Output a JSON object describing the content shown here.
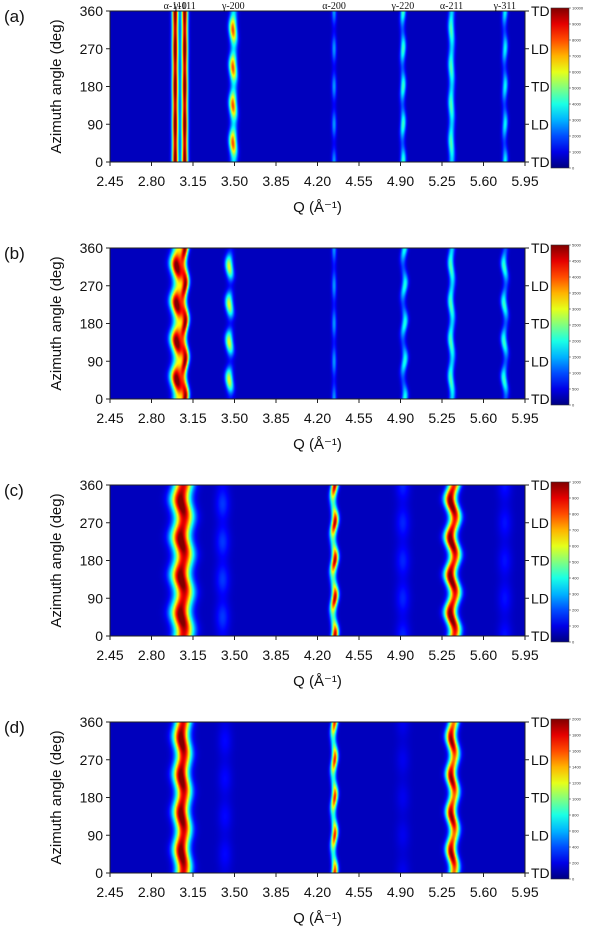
{
  "chart_data": [
    {
      "type": "heatmap",
      "panel_label": "(a)",
      "xlabel": "Q (Å⁻¹)",
      "ylabel": "Azimuth angle (deg)",
      "xlim": [
        2.45,
        5.95
      ],
      "ylim": [
        0,
        360
      ],
      "x_ticks": [
        "2.45",
        "2.80",
        "3.15",
        "3.50",
        "3.85",
        "4.20",
        "4.55",
        "4.90",
        "5.25",
        "5.60",
        "5.95"
      ],
      "y_ticks": [
        "0",
        "90",
        "180",
        "270",
        "360"
      ],
      "right_labels": [
        "TD",
        "LD",
        "TD",
        "LD",
        "TD"
      ],
      "peak_labels": [
        {
          "text": "α-110",
          "q": 3.0
        },
        {
          "text": "γ-111",
          "q": 3.08
        },
        {
          "text": "γ-200",
          "q": 3.49
        },
        {
          "text": "α-200",
          "q": 4.34
        },
        {
          "text": "γ-220",
          "q": 4.92
        },
        {
          "text": "α-211",
          "q": 5.33
        },
        {
          "text": "γ-311",
          "q": 5.78
        }
      ],
      "colorbar_ticks": [
        "0",
        "1000",
        "2000",
        "3000",
        "4000",
        "5000",
        "6000",
        "7000",
        "8000",
        "9000",
        "10000"
      ],
      "colorbar_max": 10000,
      "peaks": [
        {
          "q": 3.0,
          "w": 0.018,
          "i": 1.0,
          "mod": 0.1,
          "phase": 0,
          "wob": 0
        },
        {
          "q": 3.08,
          "w": 0.018,
          "i": 1.0,
          "mod": 0.1,
          "phase": 0,
          "wob": 0
        },
        {
          "q": 3.49,
          "w": 0.022,
          "i": 0.75,
          "mod": 0.6,
          "phase": 90,
          "wob": 0.005
        },
        {
          "q": 4.34,
          "w": 0.014,
          "i": 0.22,
          "mod": 0.7,
          "phase": 0,
          "wob": 0
        },
        {
          "q": 4.92,
          "w": 0.016,
          "i": 0.38,
          "mod": 0.6,
          "phase": 0,
          "wob": 0.004
        },
        {
          "q": 5.33,
          "w": 0.018,
          "i": 0.4,
          "mod": 0.3,
          "phase": 90,
          "wob": 0.004
        },
        {
          "q": 5.78,
          "w": 0.016,
          "i": 0.32,
          "mod": 0.6,
          "phase": 0,
          "wob": 0.004
        }
      ]
    },
    {
      "type": "heatmap",
      "panel_label": "(b)",
      "xlabel": "Q (Å⁻¹)",
      "ylabel": "Azimuth angle (deg)",
      "xlim": [
        2.45,
        5.95
      ],
      "ylim": [
        0,
        360
      ],
      "x_ticks": [
        "2.45",
        "2.80",
        "3.15",
        "3.50",
        "3.85",
        "4.20",
        "4.55",
        "4.90",
        "5.25",
        "5.60",
        "5.95"
      ],
      "y_ticks": [
        "0",
        "90",
        "180",
        "270",
        "360"
      ],
      "right_labels": [
        "TD",
        "LD",
        "TD",
        "LD",
        "TD"
      ],
      "peak_labels": [],
      "colorbar_ticks": [
        "0",
        "500",
        "1000",
        "1500",
        "2000",
        "2500",
        "3000",
        "3500",
        "4000",
        "4500",
        "5000"
      ],
      "colorbar_max": 5000,
      "peaks": [
        {
          "q": 3.02,
          "w": 0.035,
          "i": 1.0,
          "mod": 0.45,
          "phase": 90,
          "wob": 0.012
        },
        {
          "q": 3.08,
          "w": 0.02,
          "i": 0.8,
          "mod": 0.4,
          "phase": 0,
          "wob": 0.01
        },
        {
          "q": 3.46,
          "w": 0.022,
          "i": 0.55,
          "mod": 0.85,
          "phase": 90,
          "wob": 0.008
        },
        {
          "q": 4.34,
          "w": 0.014,
          "i": 0.22,
          "mod": 0.6,
          "phase": 0,
          "wob": 0
        },
        {
          "q": 4.93,
          "w": 0.018,
          "i": 0.35,
          "mod": 0.6,
          "phase": 0,
          "wob": 0.01
        },
        {
          "q": 5.33,
          "w": 0.018,
          "i": 0.4,
          "mod": 0.3,
          "phase": 90,
          "wob": 0.008
        },
        {
          "q": 5.78,
          "w": 0.018,
          "i": 0.38,
          "mod": 0.6,
          "phase": 90,
          "wob": 0.01
        }
      ]
    },
    {
      "type": "heatmap",
      "panel_label": "(c)",
      "xlabel": "Q (Å⁻¹)",
      "ylabel": "Azimuth angle (deg)",
      "xlim": [
        2.45,
        5.95
      ],
      "ylim": [
        0,
        360
      ],
      "x_ticks": [
        "2.45",
        "2.80",
        "3.15",
        "3.50",
        "3.85",
        "4.20",
        "4.55",
        "4.90",
        "5.25",
        "5.60",
        "5.95"
      ],
      "y_ticks": [
        "0",
        "90",
        "180",
        "270",
        "360"
      ],
      "right_labels": [
        "TD",
        "LD",
        "TD",
        "LD",
        "TD"
      ],
      "peak_labels": [],
      "colorbar_ticks": [
        "0",
        "100",
        "200",
        "300",
        "400",
        "500",
        "600",
        "700",
        "800",
        "900",
        "1000"
      ],
      "colorbar_max": 1000,
      "peaks": [
        {
          "q": 3.06,
          "w": 0.055,
          "i": 1.0,
          "mod": 0.15,
          "phase": 90,
          "wob": 0.015
        },
        {
          "q": 4.34,
          "w": 0.02,
          "i": 0.9,
          "mod": 0.55,
          "phase": 0,
          "wob": 0.01
        },
        {
          "q": 5.34,
          "w": 0.035,
          "i": 1.0,
          "mod": 0.2,
          "phase": 90,
          "wob": 0.02
        },
        {
          "q": 3.4,
          "w": 0.04,
          "i": 0.12,
          "mod": 0.5,
          "phase": 90,
          "wob": 0
        },
        {
          "q": 4.92,
          "w": 0.04,
          "i": 0.1,
          "mod": 0.5,
          "phase": 0,
          "wob": 0
        },
        {
          "q": 5.78,
          "w": 0.04,
          "i": 0.08,
          "mod": 0.5,
          "phase": 0,
          "wob": 0
        }
      ]
    },
    {
      "type": "heatmap",
      "panel_label": "(d)",
      "xlabel": "Q (Å⁻¹)",
      "ylabel": "Azimuth angle (deg)",
      "xlim": [
        2.45,
        5.95
      ],
      "ylim": [
        0,
        360
      ],
      "x_ticks": [
        "2.45",
        "2.80",
        "3.15",
        "3.50",
        "3.85",
        "4.20",
        "4.55",
        "4.90",
        "5.25",
        "5.60",
        "5.95"
      ],
      "y_ticks": [
        "0",
        "90",
        "180",
        "270",
        "360"
      ],
      "right_labels": [
        "TD",
        "LD",
        "TD",
        "LD",
        "TD"
      ],
      "peak_labels": [],
      "colorbar_ticks": [
        "0",
        "200",
        "400",
        "600",
        "800",
        "1000",
        "1200",
        "1400",
        "1600",
        "1800",
        "2000"
      ],
      "colorbar_max": 2000,
      "peaks": [
        {
          "q": 3.06,
          "w": 0.045,
          "i": 1.0,
          "mod": 0.15,
          "phase": 90,
          "wob": 0.012
        },
        {
          "q": 4.34,
          "w": 0.018,
          "i": 0.8,
          "mod": 0.55,
          "phase": 0,
          "wob": 0.008
        },
        {
          "q": 5.34,
          "w": 0.03,
          "i": 0.95,
          "mod": 0.25,
          "phase": 90,
          "wob": 0.015
        },
        {
          "q": 3.42,
          "w": 0.04,
          "i": 0.07,
          "mod": 0.5,
          "phase": 90,
          "wob": 0
        },
        {
          "q": 4.92,
          "w": 0.04,
          "i": 0.05,
          "mod": 0.5,
          "phase": 0,
          "wob": 0
        }
      ]
    }
  ]
}
